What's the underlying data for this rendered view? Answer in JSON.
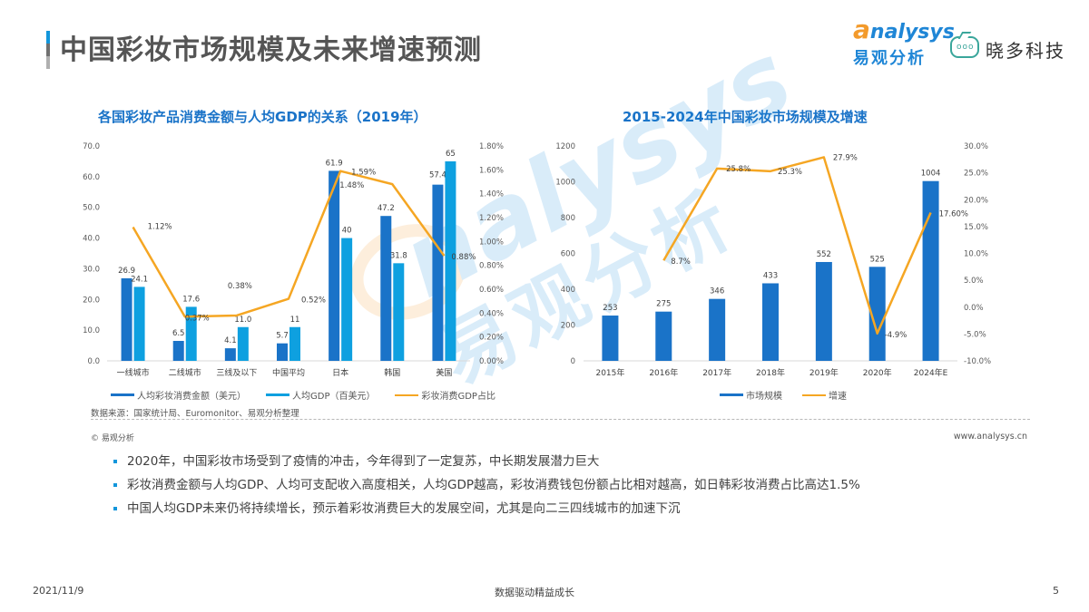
{
  "header": {
    "title": "中国彩妆市场规模及未来增速预测",
    "logo_en_a": "a",
    "logo_en_rest": "nalysys",
    "logo_cn": "易观分析",
    "partner_icon_dots": "ooo",
    "partner_name": "晓多科技"
  },
  "left_chart": {
    "title": "各国彩妆产品消费金额与人均GDP的关系（2019年）",
    "legend": [
      "人均彩妆消费金额（美元）",
      "人均GDP（百美元）",
      "彩妆消费GDP占比"
    ],
    "source": "数据来源：国家统计局、Euromonitor、易观分析整理"
  },
  "right_chart": {
    "title": "2015-2024年中国彩妆市场规模及增速",
    "legend": [
      "市场规模",
      "增速"
    ]
  },
  "footer_meta": {
    "copyright": "© 易观分析",
    "website": "www.analysys.cn"
  },
  "bullets": [
    "2020年，中国彩妆市场受到了疫情的冲击，今年得到了一定复苏，中长期发展潜力巨大",
    "彩妆消费金额与人均GDP、人均可支配收入高度相关，人均GDP越高，彩妆消费钱包份额占比相对越高，如日韩彩妆消费占比高达1.5%",
    "中国人均GDP未来仍将持续增长，预示着彩妆消费巨大的发展空间，尤其是向二三四线城市的加速下沉"
  ],
  "footer": {
    "date": "2021/11/9",
    "slogan": "数据驱动精益成长",
    "page": "5"
  },
  "watermark": {
    "en": "nalysys",
    "cn": "易观分析"
  },
  "colors": {
    "dark_blue": "#1a73c8",
    "light_blue": "#0ea0e0",
    "orange": "#f5a623",
    "title_blue": "#1a73c8"
  },
  "chart_data": [
    {
      "type": "bar",
      "title": "各国彩妆产品消费金额与人均GDP的关系（2019年）",
      "categories": [
        "一线城市",
        "二线城市",
        "三线及以下",
        "中国平均",
        "日本",
        "韩国",
        "美国"
      ],
      "series": [
        {
          "name": "人均彩妆消费金额（美元）",
          "type": "bar",
          "axis": "left",
          "values": [
            26.9,
            6.5,
            4.1,
            5.7,
            61.9,
            47.2,
            57.4
          ],
          "labels": [
            "26.9",
            "6.5",
            "4.1",
            "5.7",
            "61.9",
            "47.2",
            "57.4"
          ]
        },
        {
          "name": "人均GDP（百美元）",
          "type": "bar",
          "axis": "left",
          "values": [
            24.1,
            17.6,
            11.0,
            11,
            40,
            31.8,
            65
          ],
          "labels": [
            "24.1",
            "17.6",
            "11.0",
            "11",
            "40",
            "31.8",
            "65"
          ]
        },
        {
          "name": "彩妆消费GDP占比",
          "type": "line",
          "axis": "right",
          "values": [
            1.12,
            0.37,
            0.38,
            0.52,
            1.59,
            1.48,
            0.88
          ],
          "labels": [
            "1.12%",
            "0.37%",
            "0.38%",
            "0.52%",
            "1.59%",
            "1.48%",
            "0.88%"
          ]
        }
      ],
      "ylim": [
        0,
        70
      ],
      "yticks": [
        "0.0",
        "10.0",
        "20.0",
        "30.0",
        "40.0",
        "50.0",
        "60.0",
        "70.0"
      ],
      "y2lim": [
        0,
        1.8
      ],
      "y2ticks": [
        "0.00%",
        "0.20%",
        "0.40%",
        "0.60%",
        "0.80%",
        "1.00%",
        "1.20%",
        "1.40%",
        "1.60%",
        "1.80%"
      ],
      "xlabel": "",
      "ylabel": "",
      "legend_position": "bottom",
      "grid": false
    },
    {
      "type": "bar",
      "title": "2015-2024年中国彩妆市场规模及增速",
      "categories": [
        "2015年",
        "2016年",
        "2017年",
        "2018年",
        "2019年",
        "2020年",
        "2024年E"
      ],
      "series": [
        {
          "name": "市场规模",
          "type": "bar",
          "axis": "left",
          "values": [
            253,
            275,
            346,
            433,
            552,
            525,
            1004
          ],
          "labels": [
            "253",
            "275",
            "346",
            "433",
            "552",
            "525",
            "1004"
          ]
        },
        {
          "name": "增速",
          "type": "line",
          "axis": "right",
          "values": [
            null,
            8.7,
            25.8,
            25.3,
            27.9,
            -4.9,
            17.6
          ],
          "labels": [
            "",
            "8.7%",
            "25.8%",
            "25.3%",
            "27.9%",
            "-4.9%",
            "17.60%"
          ]
        }
      ],
      "ylim": [
        0,
        1200
      ],
      "yticks": [
        "0",
        "200",
        "400",
        "600",
        "800",
        "1000",
        "1200"
      ],
      "y2lim": [
        -10,
        30
      ],
      "y2ticks": [
        "-10.0%",
        "-5.0%",
        "0.0%",
        "5.0%",
        "10.0%",
        "15.0%",
        "20.0%",
        "25.0%",
        "30.0%"
      ],
      "xlabel": "",
      "ylabel": "",
      "legend_position": "bottom",
      "grid": false
    }
  ]
}
